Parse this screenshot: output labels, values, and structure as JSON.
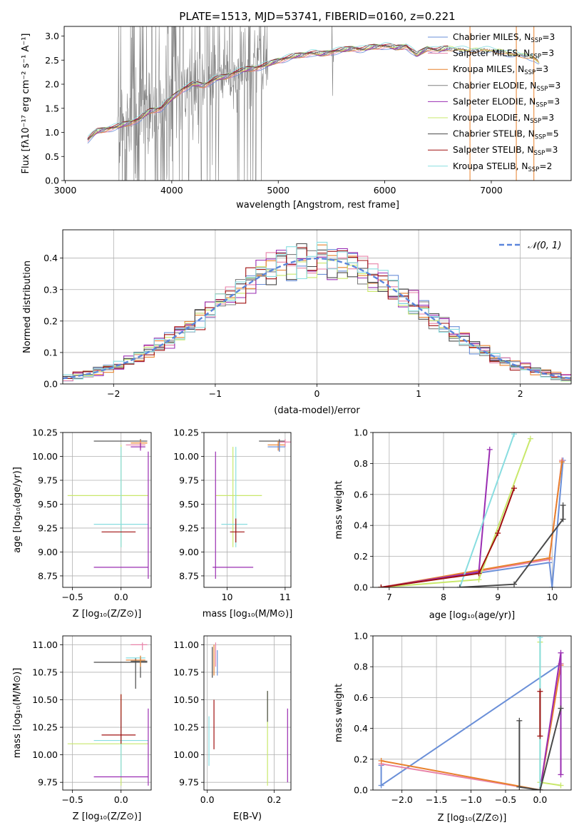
{
  "figure": {
    "title": "PLATE=1513, MJD=53741, FIBERID=0160, z=0.221"
  },
  "colors": {
    "Chabrier MILES": "#6a8fd8",
    "Salpeter MILES": "#e882a8",
    "Kroupa MILES": "#e8812c",
    "Chabrier ELODIE": "#808080",
    "Salpeter ELODIE": "#9a2db2",
    "Kroupa ELODIE": "#c9e86b",
    "Chabrier STELIB": "#4a4a4a",
    "Salpeter STELIB": "#a01010",
    "Kroupa STELIB": "#88dde0"
  },
  "chart_data": [
    {
      "id": "spectrum",
      "type": "line",
      "xlabel": "wavelength [Angstrom, rest frame]",
      "ylabel": "Flux [fλ10⁻¹⁷ erg cm⁻² s⁻¹ A⁻¹]",
      "xlim": [
        2990,
        7750
      ],
      "ylim": [
        0,
        3.2
      ],
      "xticks": [
        3000,
        4000,
        5000,
        6000,
        7000
      ],
      "yticks": [
        0.0,
        0.5,
        1.0,
        1.5,
        2.0,
        2.5,
        3.0
      ],
      "data_series": {
        "name": "",
        "x": [
          3210,
          3300,
          3400,
          3500,
          3600,
          3700,
          3800,
          3900,
          4000,
          4100,
          4200,
          4300,
          4400,
          4500,
          4600,
          4700,
          4800,
          4900,
          5000,
          5100,
          5200,
          5300,
          5400,
          5500,
          5600,
          5700,
          5800,
          5900,
          6000,
          6100,
          6200,
          6300,
          6400,
          6500,
          6600,
          6700,
          6800,
          6900,
          7000,
          7100,
          7200,
          7300,
          7400,
          7450
        ],
        "y": [
          0.85,
          1.02,
          1.08,
          1.12,
          1.2,
          1.28,
          1.45,
          1.5,
          1.7,
          1.9,
          2.0,
          1.98,
          2.1,
          2.15,
          2.25,
          2.3,
          2.35,
          2.4,
          2.5,
          2.55,
          2.6,
          2.65,
          2.62,
          2.68,
          2.7,
          2.75,
          2.72,
          2.78,
          2.8,
          2.75,
          2.8,
          2.6,
          2.75,
          2.7,
          2.75,
          2.72,
          2.7,
          2.72,
          2.7,
          2.68,
          2.62,
          2.6,
          2.55,
          2.45
        ]
      },
      "legend": [
        "Chabrier MILES, N_SSP=3",
        "Salpeter MILES, N_SSP=3",
        "Kroupa MILES, N_SSP=3",
        "Chabrier ELODIE, N_SSP=3",
        "Salpeter ELODIE, N_SSP=3",
        "Kroupa ELODIE, N_SSP=3",
        "Chabrier STELIB, N_SSP=5",
        "Salpeter STELIB, N_SSP=3",
        "Kroupa STELIB, N_SSP=2"
      ],
      "legend_placement": "upper right"
    },
    {
      "id": "residuals",
      "type": "line",
      "xlabel": "(data-model)/error",
      "ylabel": "Normed distribution",
      "xlim": [
        -2.5,
        2.5
      ],
      "ylim": [
        0,
        0.49
      ],
      "xticks": [
        -2,
        -1,
        0,
        1,
        2
      ],
      "yticks": [
        0.0,
        0.1,
        0.2,
        0.3,
        0.4
      ],
      "grid": true,
      "gaussian_label": "𝒩(0, 1)",
      "gaussian": {
        "mu": 0,
        "sigma": 1
      }
    },
    {
      "id": "age-Z",
      "type": "scatter",
      "xlabel": "Z [log₁₀(Z/Z⊙)]",
      "ylabel": "age  [log₁₀(age/yr)]",
      "xlim": [
        -0.6,
        0.31
      ],
      "ylim": [
        8.63,
        10.25
      ],
      "xticks": [
        -0.5,
        0.0
      ],
      "yticks": [
        8.75,
        9.0,
        9.25,
        9.5,
        9.75,
        10.0,
        10.25
      ]
    },
    {
      "id": "age-mass",
      "type": "scatter",
      "xlabel": "mass [log₁₀(M/M⊙)]",
      "ylabel": "",
      "xlim": [
        9.6,
        11.1
      ],
      "ylim": [
        8.63,
        10.25
      ],
      "xticks": [
        10,
        11
      ],
      "yticks": [
        8.75,
        9.0,
        9.25,
        9.5,
        9.75,
        10.0,
        10.25
      ]
    },
    {
      "id": "mw-age",
      "type": "line",
      "xlabel": "age  [log₁₀(age/yr)]",
      "ylabel": "mass weight",
      "xlim": [
        6.7,
        10.35
      ],
      "ylim": [
        0,
        1
      ],
      "xticks": [
        7,
        8,
        9,
        10
      ],
      "yticks": [
        0.0,
        0.2,
        0.4,
        0.6,
        0.8,
        1.0
      ]
    },
    {
      "id": "mass-Z",
      "type": "scatter",
      "xlabel": "Z [log₁₀(Z/Z⊙)]",
      "ylabel": "mass [log₁₀(M/M⊙)]",
      "xlim": [
        -0.6,
        0.31
      ],
      "ylim": [
        9.68,
        11.08
      ],
      "xticks": [
        -0.5,
        0.0
      ],
      "yticks": [
        9.75,
        10.0,
        10.25,
        10.5,
        10.75,
        11.0
      ]
    },
    {
      "id": "mass-EBV",
      "type": "scatter",
      "xlabel": "E(B-V)",
      "ylabel": "",
      "xlim": [
        -0.01,
        0.25
      ],
      "ylim": [
        9.68,
        11.08
      ],
      "xticks": [
        0.0,
        0.2
      ],
      "yticks": [
        9.75,
        10.0,
        10.25,
        10.5,
        10.75,
        11.0
      ]
    },
    {
      "id": "mw-Z",
      "type": "line",
      "xlabel": "Z [log₁₀(Z/Z⊙)]",
      "ylabel": "mass weight",
      "xlim": [
        -2.42,
        0.45
      ],
      "ylim": [
        0,
        1
      ],
      "xticks": [
        -2.0,
        -1.5,
        -1.0,
        -0.5,
        0.0
      ],
      "yticks": [
        0.0,
        0.2,
        0.4,
        0.6,
        0.8,
        1.0
      ]
    }
  ]
}
